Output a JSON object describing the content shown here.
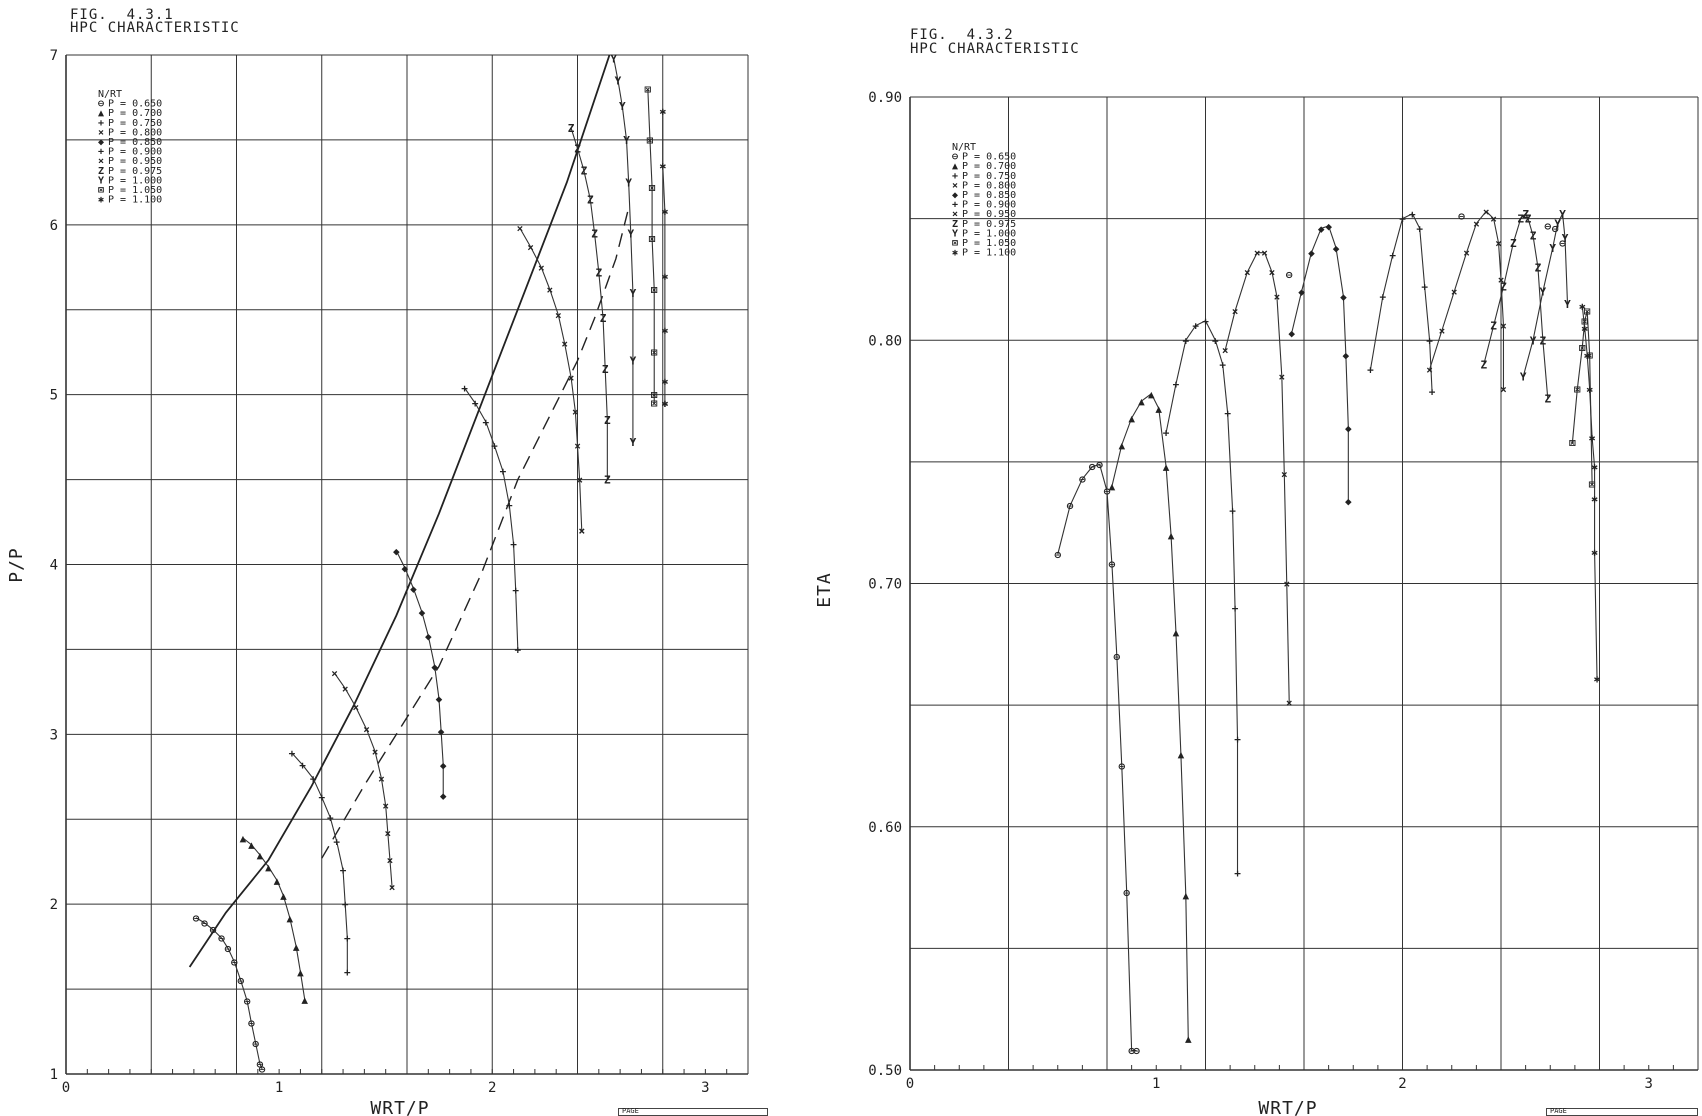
{
  "figures": [
    {
      "fig_label": "FIG.  4.3.1",
      "title": "HPC CHARACTERISTIC",
      "page_label": "PAGE"
    },
    {
      "fig_label": "FIG.  4.3.2",
      "title": "HPC CHARACTERISTIC",
      "page_label": "PAGE"
    }
  ],
  "chart_data": [
    {
      "type": "line",
      "title": "HPC CHARACTERISTIC",
      "xlabel": "WRT/P",
      "ylabel": "P/P",
      "xlim": [
        0,
        3.2
      ],
      "ylim": [
        1,
        7
      ],
      "x_ticks": [
        0,
        1,
        2,
        3
      ],
      "x_tick_labels": [
        "0",
        "1",
        "2",
        "3"
      ],
      "y_ticks": [
        1,
        2,
        3,
        4,
        5,
        6,
        7
      ],
      "y_tick_labels": [
        "1",
        "2",
        "3",
        "4",
        "5",
        "6",
        "7"
      ],
      "grid": true,
      "legend_position": "top-left",
      "legend_title": "N/RT",
      "series": [
        {
          "name": "P = 0.650",
          "marker": "⊖",
          "x": [
            0.61,
            0.65,
            0.69,
            0.73,
            0.76,
            0.79,
            0.82,
            0.85,
            0.87,
            0.89,
            0.91,
            0.92
          ],
          "y": [
            1.92,
            1.89,
            1.85,
            1.8,
            1.74,
            1.66,
            1.55,
            1.43,
            1.3,
            1.18,
            1.06,
            1.03
          ]
        },
        {
          "name": "P = 0.700",
          "marker": "▲",
          "x": [
            0.83,
            0.87,
            0.91,
            0.95,
            0.99,
            1.02,
            1.05,
            1.08,
            1.1,
            1.12
          ],
          "y": [
            2.39,
            2.35,
            2.29,
            2.22,
            2.14,
            2.05,
            1.92,
            1.75,
            1.6,
            1.44
          ]
        },
        {
          "name": "P = 0.750",
          "marker": "+",
          "x": [
            1.06,
            1.11,
            1.16,
            1.2,
            1.24,
            1.27,
            1.3,
            1.31,
            1.32,
            1.32
          ],
          "y": [
            2.89,
            2.82,
            2.74,
            2.63,
            2.51,
            2.37,
            2.2,
            2.0,
            1.8,
            1.6
          ]
        },
        {
          "name": "P = 0.800",
          "marker": "×",
          "x": [
            1.26,
            1.31,
            1.36,
            1.41,
            1.45,
            1.48,
            1.5,
            1.51,
            1.52,
            1.53
          ],
          "y": [
            3.36,
            3.27,
            3.16,
            3.03,
            2.9,
            2.74,
            2.58,
            2.42,
            2.26,
            2.1
          ]
        },
        {
          "name": "P = 0.850",
          "marker": "◆",
          "x": [
            1.55,
            1.59,
            1.63,
            1.67,
            1.7,
            1.73,
            1.75,
            1.76,
            1.77,
            1.77
          ],
          "y": [
            4.08,
            3.98,
            3.86,
            3.72,
            3.58,
            3.4,
            3.21,
            3.02,
            2.82,
            2.64
          ]
        },
        {
          "name": "P = 0.900",
          "marker": "+",
          "x": [
            1.87,
            1.92,
            1.97,
            2.01,
            2.05,
            2.08,
            2.1,
            2.11,
            2.12
          ],
          "y": [
            5.04,
            4.95,
            4.84,
            4.7,
            4.55,
            4.35,
            4.12,
            3.85,
            3.5
          ]
        },
        {
          "name": "P = 0.950",
          "marker": "×",
          "x": [
            2.13,
            2.18,
            2.23,
            2.27,
            2.31,
            2.34,
            2.37,
            2.39,
            2.4,
            2.41,
            2.42,
            2.42
          ],
          "y": [
            5.98,
            5.87,
            5.75,
            5.62,
            5.47,
            5.3,
            5.1,
            4.9,
            4.7,
            4.5,
            4.2,
            4.2
          ]
        },
        {
          "name": "P = 0.975",
          "marker": "Z",
          "x": [
            2.37,
            2.4,
            2.43,
            2.46,
            2.48,
            2.5,
            2.52,
            2.53,
            2.54,
            2.54
          ],
          "y": [
            6.57,
            6.45,
            6.32,
            6.15,
            5.95,
            5.72,
            5.45,
            5.15,
            4.85,
            4.5
          ]
        },
        {
          "name": "P = 1.000",
          "marker": "Y",
          "x": [
            2.57,
            2.59,
            2.61,
            2.63,
            2.64,
            2.65,
            2.66,
            2.66,
            2.66
          ],
          "y": [
            6.98,
            6.85,
            6.7,
            6.5,
            6.25,
            5.95,
            5.6,
            5.2,
            4.72
          ]
        },
        {
          "name": "P = 1.050",
          "marker": "⊠",
          "x": [
            2.73,
            2.74,
            2.75,
            2.75,
            2.76,
            2.76,
            2.76,
            2.76
          ],
          "y": [
            6.8,
            6.5,
            6.22,
            5.92,
            5.62,
            5.25,
            5.0,
            4.95
          ]
        },
        {
          "name": "P = 1.100",
          "marker": "✱",
          "x": [
            2.8,
            2.8,
            2.81,
            2.81,
            2.81,
            2.81,
            2.81,
            2.81
          ],
          "y": [
            6.67,
            6.35,
            6.08,
            5.7,
            5.38,
            5.08,
            4.95,
            4.95
          ]
        }
      ],
      "surge_line": {
        "x": [
          0.58,
          0.75,
          0.95,
          1.15,
          1.35,
          1.55,
          1.75,
          1.95,
          2.15,
          2.35,
          2.55
        ],
        "y": [
          1.63,
          1.95,
          2.26,
          2.69,
          3.17,
          3.7,
          4.3,
          4.95,
          5.6,
          6.25,
          7.0
        ]
      },
      "working_line": {
        "x": [
          1.2,
          1.4,
          1.55,
          1.75,
          1.95,
          2.12,
          2.28,
          2.4,
          2.48,
          2.58,
          2.64
        ],
        "y": [
          2.27,
          2.7,
          3.0,
          3.4,
          3.95,
          4.5,
          4.9,
          5.2,
          5.45,
          5.8,
          6.1
        ]
      }
    },
    {
      "type": "line",
      "title": "HPC CHARACTERISTIC",
      "xlabel": "WRT/P",
      "ylabel": "ETA",
      "xlim": [
        0,
        3.2
      ],
      "ylim": [
        0.5,
        0.9
      ],
      "x_ticks": [
        0,
        1,
        2,
        3
      ],
      "x_tick_labels": [
        "0",
        "1",
        "2",
        "3"
      ],
      "y_ticks": [
        0.5,
        0.6,
        0.7,
        0.8,
        0.9
      ],
      "y_tick_labels": [
        "0.50",
        "0.60",
        "0.70",
        "0.80",
        "0.90"
      ],
      "grid": true,
      "legend_position": "top-left",
      "legend_title": "N/RT",
      "series": [
        {
          "name": "P = 0.650",
          "marker": "⊖",
          "x": [
            0.6,
            0.65,
            0.7,
            0.74,
            0.77,
            0.8,
            0.82,
            0.84,
            0.86,
            0.88,
            0.9,
            0.92
          ],
          "y": [
            0.712,
            0.732,
            0.743,
            0.748,
            0.749,
            0.738,
            0.708,
            0.67,
            0.625,
            0.573,
            0.508,
            0.508
          ]
        },
        {
          "name": "P = 0.700",
          "marker": "▲",
          "x": [
            0.82,
            0.86,
            0.9,
            0.94,
            0.98,
            1.01,
            1.04,
            1.06,
            1.08,
            1.1,
            1.12,
            1.13
          ],
          "y": [
            0.74,
            0.757,
            0.768,
            0.775,
            0.778,
            0.772,
            0.748,
            0.72,
            0.68,
            0.63,
            0.572,
            0.513
          ]
        },
        {
          "name": "P = 0.750",
          "marker": "+",
          "x": [
            1.04,
            1.08,
            1.12,
            1.16,
            1.2,
            1.24,
            1.27,
            1.29,
            1.31,
            1.32,
            1.33,
            1.33
          ],
          "y": [
            0.762,
            0.782,
            0.8,
            0.806,
            0.808,
            0.8,
            0.79,
            0.77,
            0.73,
            0.69,
            0.636,
            0.581
          ]
        },
        {
          "name": "P = 0.800",
          "marker": "×",
          "x": [
            1.28,
            1.32,
            1.37,
            1.41,
            1.44,
            1.47,
            1.49,
            1.51,
            1.52,
            1.53,
            1.54
          ],
          "y": [
            0.796,
            0.812,
            0.828,
            0.836,
            0.836,
            0.828,
            0.818,
            0.785,
            0.745,
            0.7,
            0.651
          ]
        },
        {
          "name": "P = 0.850",
          "marker": "◆",
          "x": [
            1.55,
            1.59,
            1.63,
            1.67,
            1.7,
            1.73,
            1.76,
            1.77,
            1.78,
            1.78
          ],
          "y": [
            0.803,
            0.82,
            0.836,
            0.846,
            0.847,
            0.838,
            0.818,
            0.794,
            0.764,
            0.734
          ]
        },
        {
          "name": "P = 0.900",
          "marker": "+",
          "x": [
            1.87,
            1.92,
            1.96,
            2.0,
            2.04,
            2.07,
            2.09,
            2.11,
            2.12
          ],
          "y": [
            0.788,
            0.818,
            0.835,
            0.85,
            0.852,
            0.846,
            0.822,
            0.8,
            0.779
          ]
        },
        {
          "name": "P = 0.950",
          "marker": "×",
          "x": [
            2.11,
            2.16,
            2.21,
            2.26,
            2.3,
            2.34,
            2.37,
            2.39,
            2.4,
            2.41,
            2.41
          ],
          "y": [
            0.788,
            0.804,
            0.82,
            0.836,
            0.848,
            0.853,
            0.85,
            0.84,
            0.825,
            0.806,
            0.78
          ]
        },
        {
          "name": "P = 0.975",
          "marker": "Z",
          "x": [
            2.33,
            2.37,
            2.41,
            2.45,
            2.48,
            2.5,
            2.51,
            2.53,
            2.55,
            2.57,
            2.59
          ],
          "y": [
            0.79,
            0.806,
            0.822,
            0.84,
            0.85,
            0.852,
            0.85,
            0.843,
            0.83,
            0.8,
            0.776
          ]
        },
        {
          "name": "P = 1.000",
          "marker": "Y",
          "x": [
            2.49,
            2.53,
            2.57,
            2.61,
            2.63,
            2.65,
            2.66,
            2.67
          ],
          "y": [
            0.785,
            0.8,
            0.82,
            0.838,
            0.848,
            0.852,
            0.842,
            0.815
          ]
        },
        {
          "name": "P = 1.050",
          "marker": "⊠",
          "x": [
            2.69,
            2.71,
            2.73,
            2.74,
            2.75,
            2.76,
            2.77
          ],
          "y": [
            0.758,
            0.78,
            0.797,
            0.808,
            0.812,
            0.794,
            0.741
          ]
        },
        {
          "name": "P = 1.100",
          "marker": "✱",
          "x": [
            2.73,
            2.74,
            2.75,
            2.76,
            2.77,
            2.78,
            2.78,
            2.78,
            2.79
          ],
          "y": [
            0.814,
            0.805,
            0.794,
            0.78,
            0.76,
            0.748,
            0.735,
            0.713,
            0.661
          ]
        }
      ],
      "extra_points": [
        {
          "marker": "⊖",
          "x": 1.54,
          "y": 0.827
        },
        {
          "marker": "⊖",
          "x": 2.24,
          "y": 0.851
        },
        {
          "marker": "⊖",
          "x": 2.59,
          "y": 0.847
        },
        {
          "marker": "⊖",
          "x": 2.62,
          "y": 0.846
        },
        {
          "marker": "⊖",
          "x": 2.65,
          "y": 0.84
        }
      ]
    }
  ]
}
